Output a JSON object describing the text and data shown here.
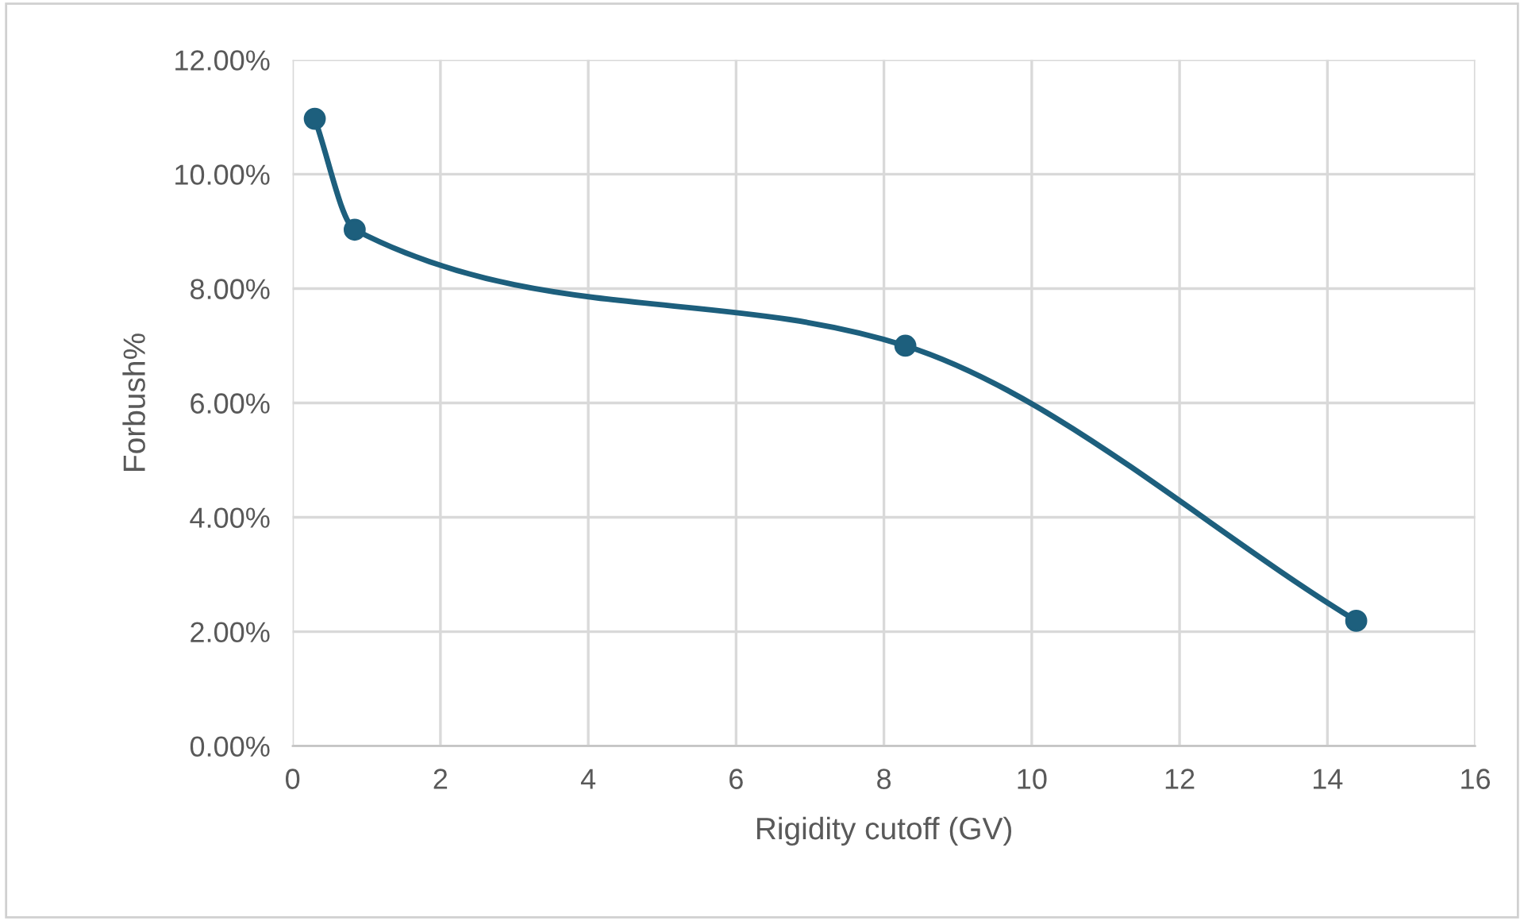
{
  "chart_data": {
    "type": "line",
    "xlabel": "Rigidity cutoff (GV)",
    "ylabel": "Forbush%",
    "x": [
      0.3,
      0.84,
      8.29,
      14.39
    ],
    "series": [
      {
        "color": "#1d5f7d",
        "values": [
          10.97,
          9.03,
          7.0,
          2.19
        ]
      }
    ],
    "xlim": [
      0,
      16
    ],
    "xticks": [
      0,
      2,
      4,
      6,
      8,
      10,
      12,
      14,
      16
    ],
    "ylim": [
      0,
      12
    ],
    "yticks": [
      {
        "value": 0,
        "label": "0.00%"
      },
      {
        "value": 2,
        "label": "2.00%"
      },
      {
        "value": 4,
        "label": "4.00%"
      },
      {
        "value": 6,
        "label": "6.00%"
      },
      {
        "value": 8,
        "label": "8.00%"
      },
      {
        "value": 10,
        "label": "10.00%"
      },
      {
        "value": 12,
        "label": "12.00%"
      }
    ],
    "grid": true,
    "marker": "circle",
    "line_style": "solid",
    "legend": false
  }
}
